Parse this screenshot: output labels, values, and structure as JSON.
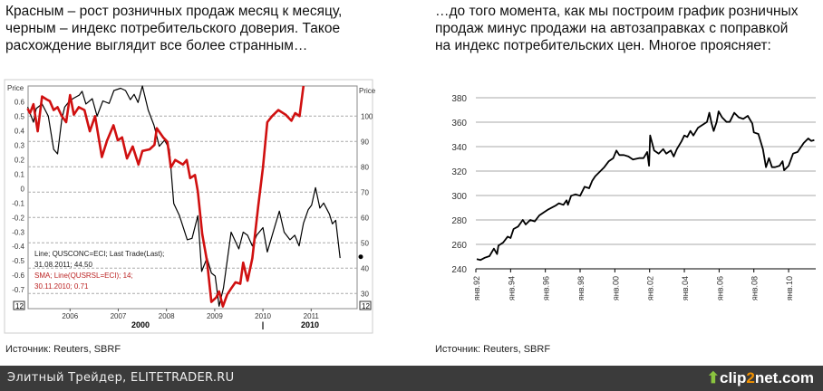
{
  "left": {
    "caption": "Красным – рост розничных продаж месяц к месяцу, черным – индекс потребительского доверия. Такое расхождение выглядит все более странным…",
    "source": "Источник: Reuters, SBRF"
  },
  "right": {
    "caption": "…до того момента, как мы построим график розничных продаж минус продажи на автозаправках с поправкой на индекс потребительских цен. Многое проясняет:",
    "source": "Источник: Reuters, SBRF"
  },
  "footer": {
    "site": "Элитный Трейдер, ELITETRADER.RU",
    "logo_pre": "clip",
    "logo_mid": "2",
    "logo_post": "net.com"
  },
  "chart_data": [
    {
      "type": "line",
      "left_axis_label": "Price",
      "right_axis_label": "Price",
      "ylim_left": [
        -0.75,
        0.65
      ],
      "ylim_right": [
        26,
        113
      ],
      "left_ticks": [
        "0.6",
        "0.5",
        "0.4",
        "0.3",
        "0.2",
        "0.1",
        "0",
        "-0.1",
        "-0.2",
        "-0.3",
        "-0.4",
        "-0.5",
        "-0.6",
        "-0.7"
      ],
      "right_ticks": [
        "100",
        "90",
        "80",
        "70",
        "60",
        "50",
        "40",
        "30"
      ],
      "x_ticks": [
        "2006",
        "2007",
        "2008",
        "2009",
        "2010",
        "2011"
      ],
      "x_sub": [
        "2000",
        "|",
        "2010"
      ],
      "corner_label": "12",
      "grid": "dashed",
      "legend": [
        "Line; QUSCONC=ECI; Last Trade(Last);",
        "31.08.2011; 44.50",
        "SMA; Line(QUSRSL=ECI);  14;",
        "30.11.2010; 0.71"
      ],
      "series": [
        {
          "name": "Line; QUSCONC=ECI; Last Trade(Last)",
          "axis": "right",
          "color": "#000000",
          "points": [
            [
              2005.12,
              103.6
            ],
            [
              2005.24,
              97.6
            ],
            [
              2005.3,
              103
            ],
            [
              2005.42,
              104.8
            ],
            [
              2005.55,
              100
            ],
            [
              2005.66,
              86.9
            ],
            [
              2005.74,
              85.1
            ],
            [
              2005.83,
              98.8
            ],
            [
              2005.89,
              103.6
            ],
            [
              2005.99,
              106
            ],
            [
              2006.08,
              107.1
            ],
            [
              2006.19,
              108.3
            ],
            [
              2006.25,
              109.8
            ],
            [
              2006.33,
              104.8
            ],
            [
              2006.46,
              106.9
            ],
            [
              2006.56,
              100
            ],
            [
              2006.68,
              106
            ],
            [
              2006.81,
              105
            ],
            [
              2006.91,
              110.1
            ],
            [
              2007.05,
              111
            ],
            [
              2007.15,
              110.1
            ],
            [
              2007.25,
              106.5
            ],
            [
              2007.33,
              108.6
            ],
            [
              2007.41,
              105.4
            ],
            [
              2007.5,
              111.9
            ],
            [
              2007.62,
              102.4
            ],
            [
              2007.74,
              96.4
            ],
            [
              2007.85,
              88.1
            ],
            [
              2007.96,
              90.5
            ],
            [
              2008.06,
              86.9
            ],
            [
              2008.15,
              65.5
            ],
            [
              2008.27,
              60.7
            ],
            [
              2008.43,
              51.2
            ],
            [
              2008.53,
              51.8
            ],
            [
              2008.65,
              60.7
            ],
            [
              2008.73,
              38.7
            ],
            [
              2008.84,
              44
            ],
            [
              2008.93,
              38.1
            ],
            [
              2009.01,
              36.9
            ],
            [
              2009.09,
              25
            ],
            [
              2009.18,
              32.1
            ],
            [
              2009.34,
              54.2
            ],
            [
              2009.5,
              47.6
            ],
            [
              2009.59,
              54.2
            ],
            [
              2009.68,
              53
            ],
            [
              2009.78,
              48.8
            ],
            [
              2009.87,
              53
            ],
            [
              2010,
              56
            ],
            [
              2010.09,
              46.4
            ],
            [
              2010.22,
              54.8
            ],
            [
              2010.34,
              62.5
            ],
            [
              2010.44,
              54.2
            ],
            [
              2010.56,
              51.2
            ],
            [
              2010.66,
              53
            ],
            [
              2010.75,
              48.8
            ],
            [
              2010.84,
              57.7
            ],
            [
              2010.94,
              63.1
            ],
            [
              2011.01,
              64.9
            ],
            [
              2011.09,
              71.8
            ],
            [
              2011.18,
              63.7
            ],
            [
              2011.26,
              65.7
            ],
            [
              2011.38,
              61.3
            ],
            [
              2011.44,
              57.5
            ],
            [
              2011.51,
              58.9
            ],
            [
              2011.6,
              44
            ]
          ]
        },
        {
          "name": "SMA; Line(QUSRSL=ECI); 14",
          "axis": "left",
          "color": "#d01010",
          "points": [
            [
              2005.12,
              0.554
            ],
            [
              2005.17,
              0.523
            ],
            [
              2005.24,
              0.585
            ],
            [
              2005.33,
              0.397
            ],
            [
              2005.42,
              0.638
            ],
            [
              2005.52,
              0.617
            ],
            [
              2005.58,
              0.606
            ],
            [
              2005.66,
              0.544
            ],
            [
              2005.74,
              0.564
            ],
            [
              2005.83,
              0.502
            ],
            [
              2005.92,
              0.46
            ],
            [
              2006,
              0.648
            ],
            [
              2006.08,
              0.512
            ],
            [
              2006.18,
              0.564
            ],
            [
              2006.3,
              0.544
            ],
            [
              2006.41,
              0.397
            ],
            [
              2006.52,
              0.502
            ],
            [
              2006.66,
              0.219
            ],
            [
              2006.77,
              0.334
            ],
            [
              2006.9,
              0.439
            ],
            [
              2006.99,
              0.334
            ],
            [
              2007.08,
              0.355
            ],
            [
              2007.18,
              0.209
            ],
            [
              2007.3,
              0.292
            ],
            [
              2007.42,
              0.167
            ],
            [
              2007.5,
              0.261
            ],
            [
              2007.65,
              0.272
            ],
            [
              2007.75,
              0.303
            ],
            [
              2007.8,
              0.418
            ],
            [
              2007.93,
              0.355
            ],
            [
              2008.02,
              0.324
            ],
            [
              2008.09,
              0.146
            ],
            [
              2008.18,
              0.198
            ],
            [
              2008.34,
              0.167
            ],
            [
              2008.42,
              0.198
            ],
            [
              2008.49,
              0.073
            ],
            [
              2008.59,
              0.094
            ],
            [
              2008.65,
              -0.021
            ],
            [
              2008.74,
              -0.314
            ],
            [
              2008.84,
              -0.502
            ],
            [
              2008.93,
              -0.785
            ],
            [
              2009.03,
              -0.754
            ],
            [
              2009.09,
              -0.712
            ],
            [
              2009.17,
              -0.816
            ],
            [
              2009.26,
              -0.733
            ],
            [
              2009.34,
              -0.692
            ],
            [
              2009.43,
              -0.649
            ],
            [
              2009.53,
              -0.659
            ],
            [
              2009.59,
              -0.513
            ],
            [
              2009.68,
              -0.638
            ],
            [
              2009.78,
              -0.482
            ],
            [
              2009.9,
              -0.126
            ],
            [
              2010,
              0.146
            ],
            [
              2010.09,
              0.46
            ],
            [
              2010.19,
              0.502
            ],
            [
              2010.32,
              0.544
            ],
            [
              2010.47,
              0.512
            ],
            [
              2010.59,
              0.47
            ],
            [
              2010.67,
              0.523
            ],
            [
              2010.76,
              0.502
            ],
            [
              2010.84,
              0.711
            ]
          ]
        }
      ]
    },
    {
      "type": "line",
      "ylim": [
        240,
        380
      ],
      "y_ticks": [
        "380",
        "360",
        "340",
        "320",
        "300",
        "280",
        "260",
        "240"
      ],
      "grid": "horizontal",
      "x_ticks": [
        "янв.92",
        "янв.94",
        "янв.96",
        "янв.98",
        "янв.00",
        "янв.02",
        "янв.04",
        "янв.06",
        "янв.08",
        "янв.10"
      ],
      "series": [
        {
          "color": "#000000",
          "points": [
            [
              1992.05,
              247.9
            ],
            [
              1992.26,
              247.2
            ],
            [
              1992.52,
              249.1
            ],
            [
              1992.78,
              250.4
            ],
            [
              1993.04,
              256.5
            ],
            [
              1993.22,
              252.1
            ],
            [
              1993.3,
              259
            ],
            [
              1993.57,
              261.5
            ],
            [
              1993.83,
              266.4
            ],
            [
              1994,
              265.2
            ],
            [
              1994.17,
              272.6
            ],
            [
              1994.43,
              274.6
            ],
            [
              1994.7,
              280
            ],
            [
              1994.87,
              276.3
            ],
            [
              1995.13,
              280
            ],
            [
              1995.39,
              278.8
            ],
            [
              1995.65,
              283.7
            ],
            [
              1995.91,
              286.2
            ],
            [
              1996.17,
              288.6
            ],
            [
              1996.35,
              289.9
            ],
            [
              1996.61,
              291.9
            ],
            [
              1996.78,
              293.6
            ],
            [
              1997.04,
              292.4
            ],
            [
              1997.22,
              296.1
            ],
            [
              1997.3,
              292.4
            ],
            [
              1997.48,
              299.8
            ],
            [
              1997.74,
              301
            ],
            [
              1998,
              299.8
            ],
            [
              1998.26,
              307.2
            ],
            [
              1998.52,
              305.9
            ],
            [
              1998.7,
              312.1
            ],
            [
              1998.87,
              315.8
            ],
            [
              1999.13,
              319.5
            ],
            [
              1999.39,
              323.2
            ],
            [
              1999.65,
              328.1
            ],
            [
              1999.91,
              330.6
            ],
            [
              2000.09,
              336.8
            ],
            [
              2000.26,
              333.1
            ],
            [
              2000.52,
              333.1
            ],
            [
              2000.78,
              331.9
            ],
            [
              2001.04,
              329.4
            ],
            [
              2001.39,
              330.6
            ],
            [
              2001.65,
              330.6
            ],
            [
              2001.86,
              335.6
            ],
            [
              2001.97,
              324.4
            ],
            [
              2002.03,
              349.1
            ],
            [
              2002.26,
              336.8
            ],
            [
              2002.52,
              334.3
            ],
            [
              2002.78,
              338
            ],
            [
              2002.96,
              334.3
            ],
            [
              2003.22,
              336.8
            ],
            [
              2003.39,
              331.9
            ],
            [
              2003.57,
              338
            ],
            [
              2003.83,
              344.2
            ],
            [
              2004,
              349.1
            ],
            [
              2004.17,
              347.9
            ],
            [
              2004.35,
              352.8
            ],
            [
              2004.52,
              349.1
            ],
            [
              2004.78,
              355.3
            ],
            [
              2005.04,
              357.8
            ],
            [
              2005.3,
              360.2
            ],
            [
              2005.44,
              367.7
            ],
            [
              2005.57,
              359
            ],
            [
              2005.69,
              352.8
            ],
            [
              2005.86,
              360.2
            ],
            [
              2005.97,
              368.9
            ],
            [
              2006.17,
              364
            ],
            [
              2006.43,
              360.2
            ],
            [
              2006.61,
              360.2
            ],
            [
              2006.87,
              367.7
            ],
            [
              2007.13,
              364
            ],
            [
              2007.39,
              362.7
            ],
            [
              2007.65,
              365.2
            ],
            [
              2007.91,
              359
            ],
            [
              2008,
              351.6
            ],
            [
              2008.26,
              350.4
            ],
            [
              2008.52,
              338
            ],
            [
              2008.7,
              323.2
            ],
            [
              2008.87,
              330.6
            ],
            [
              2009.04,
              323.2
            ],
            [
              2009.22,
              323.2
            ],
            [
              2009.48,
              324.4
            ],
            [
              2009.65,
              328.1
            ],
            [
              2009.74,
              320.7
            ],
            [
              2010,
              324.4
            ],
            [
              2010.26,
              334.3
            ],
            [
              2010.52,
              335.6
            ],
            [
              2010.87,
              343
            ],
            [
              2011.13,
              346.7
            ],
            [
              2011.3,
              344.7
            ],
            [
              2011.48,
              345.4
            ]
          ]
        }
      ]
    }
  ]
}
